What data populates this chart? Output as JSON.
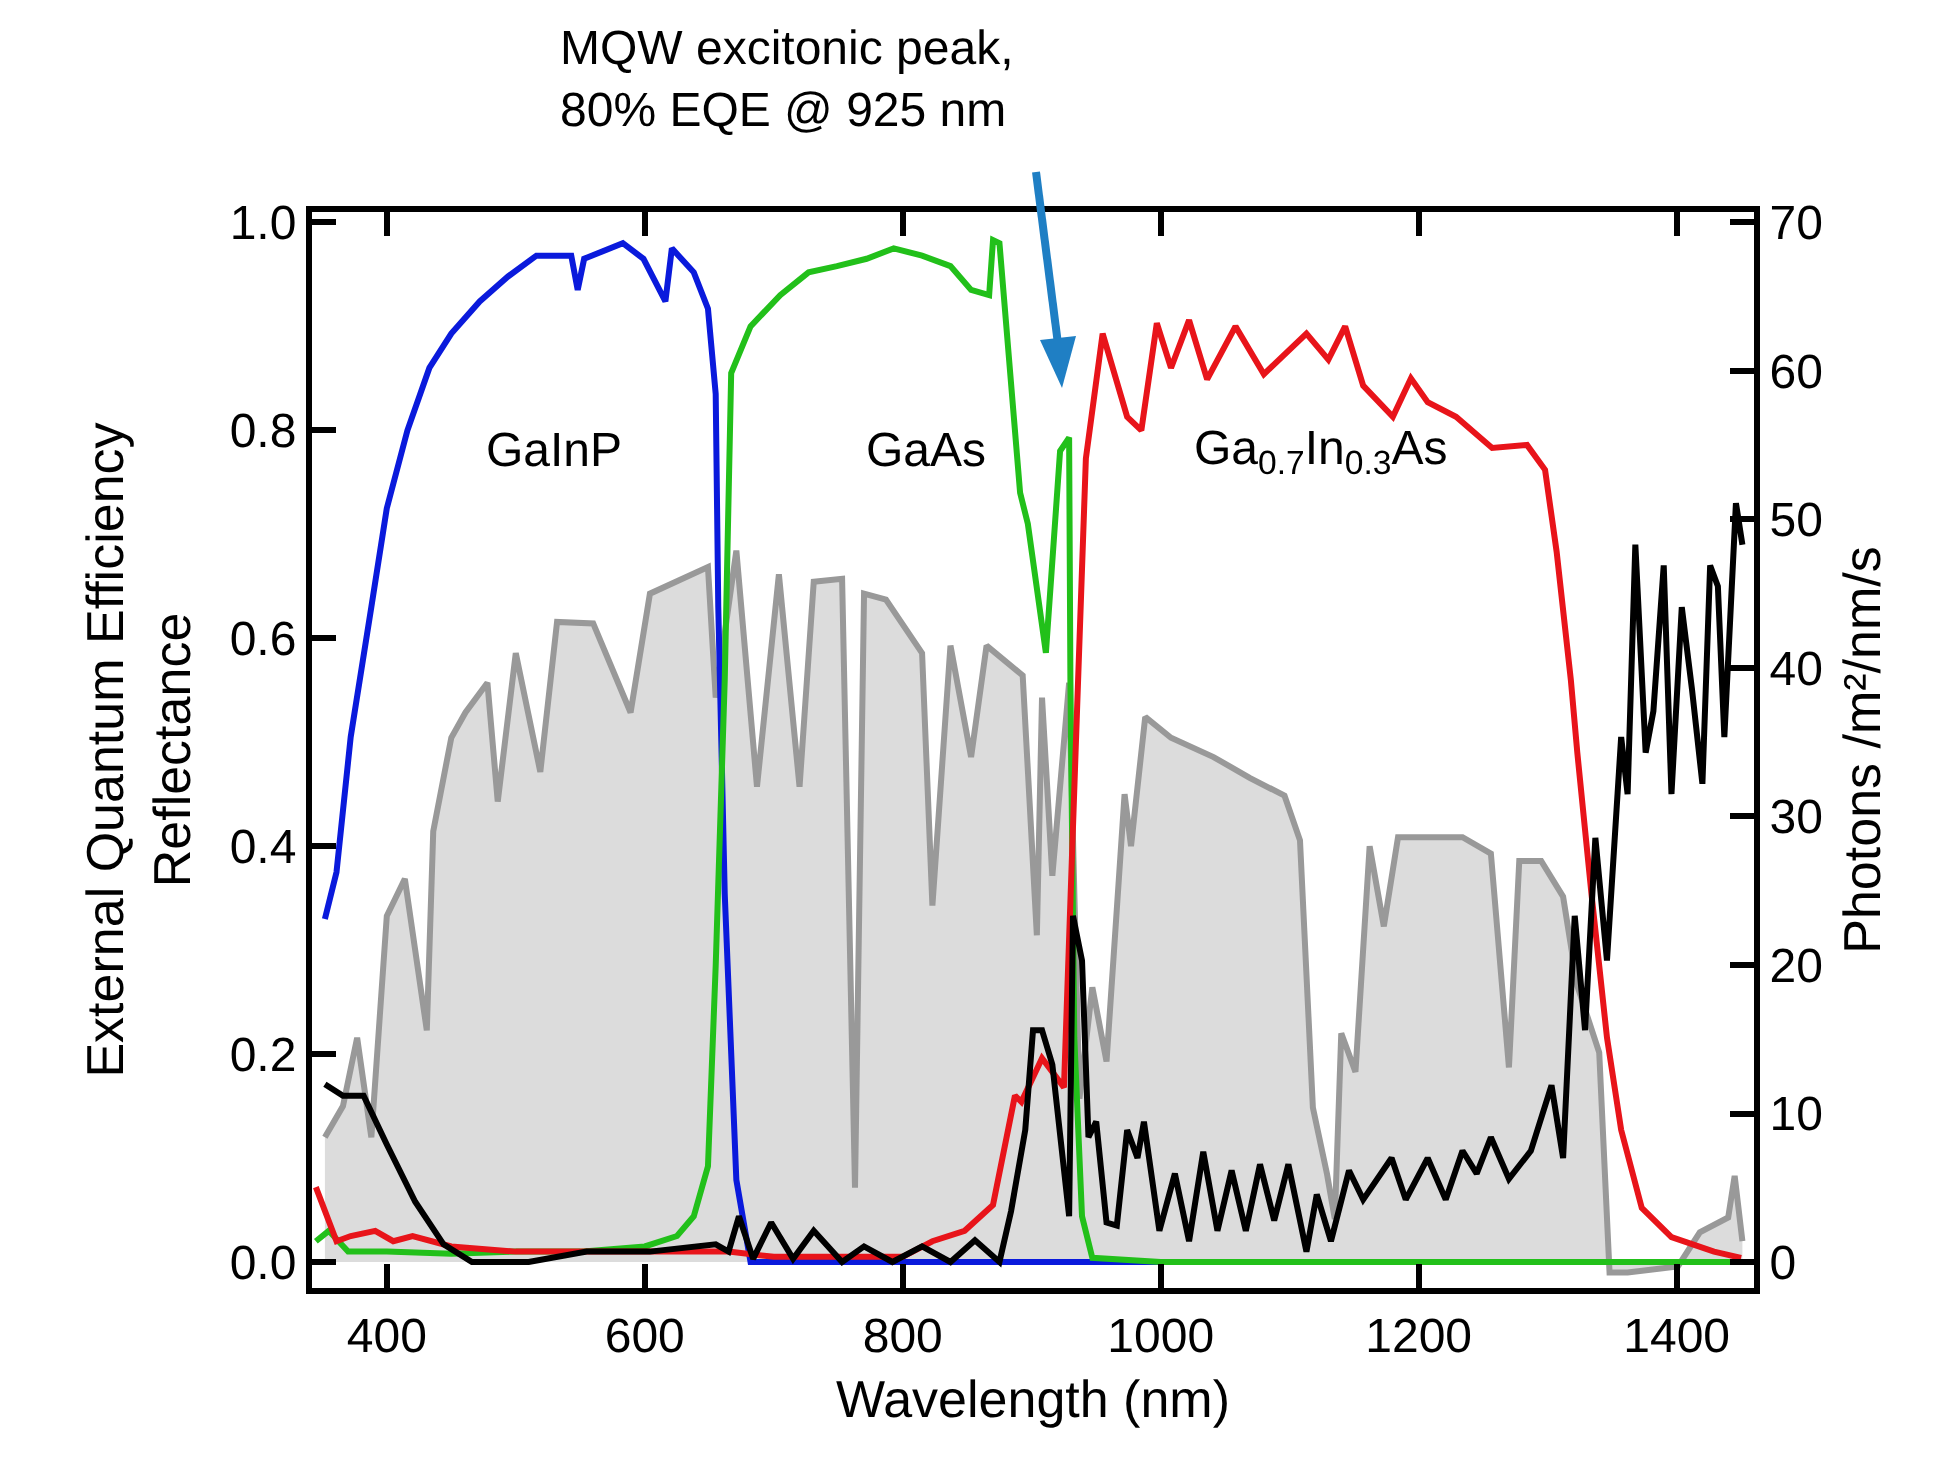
{
  "chart_data": {
    "type": "line",
    "xlabel": "Wavelength (nm)",
    "ylabel": "External Quantum Efficiency\nReflectance",
    "y2label": "Photons /m²/nm/s",
    "xlim": [
      342,
      1460
    ],
    "xticks": [
      400,
      600,
      800,
      1000,
      1200,
      1400
    ],
    "ylim": [
      -0.025,
      1.01
    ],
    "yticks": [
      {
        "value": 0,
        "label": "0.0"
      },
      0.2,
      0.4,
      0.6,
      0.8,
      {
        "value": 1,
        "label": "1.0"
      }
    ],
    "y2lim": [
      -1.75,
      70.7
    ],
    "y2ticks": [
      0,
      10,
      20,
      30,
      40,
      50,
      60,
      70
    ],
    "grid": false,
    "legend": false,
    "marker": "none",
    "line_style": "solid",
    "annotations": [
      "MQW excitonic peak,\n80% EQE @ 925 nm"
    ],
    "series": [
      {
        "type": "area",
        "axis": "y2",
        "color": "#999999",
        "x": [
          352,
          366,
          377,
          388,
          400,
          414,
          431,
          436,
          450,
          461,
          478,
          486,
          500,
          519,
          532,
          560,
          589,
          604,
          649,
          655,
          671,
          687,
          704,
          720,
          731,
          753,
          763,
          770,
          787,
          815,
          823,
          837,
          853,
          865,
          893,
          904,
          908,
          916,
          929,
          937,
          947,
          958,
          972,
          977,
          988,
          1008,
          1041,
          1069,
          1096,
          1108,
          1118,
          1129,
          1135,
          1140,
          1151,
          1162,
          1173,
          1184,
          1206,
          1234,
          1256,
          1270,
          1278,
          1295,
          1312,
          1323,
          1340,
          1348,
          1362,
          1401,
          1418,
          1440,
          1445,
          1451
        ],
        "values": [
          8.4,
          10.5,
          15.1,
          8.4,
          23.3,
          25.8,
          15.6,
          29,
          35.3,
          37,
          39,
          31,
          41,
          33,
          43.1,
          43,
          37,
          45,
          46.8,
          38,
          47.9,
          32,
          46.3,
          32,
          45.8,
          46,
          5,
          45,
          44.6,
          41,
          24,
          41.5,
          34,
          41.5,
          39.5,
          22,
          38,
          26,
          39,
          11,
          18.5,
          13.5,
          31.5,
          28,
          36.7,
          35.3,
          34,
          32.6,
          31.4,
          28.4,
          10.4,
          5.9,
          2.9,
          15.4,
          12.8,
          28,
          22.6,
          28.6,
          28.6,
          28.6,
          27.5,
          13.1,
          27,
          27,
          24.6,
          18.6,
          14.1,
          -0.7,
          -0.7,
          -0.3,
          2,
          3,
          5.8,
          1.4
        ]
      },
      {
        "name": "GaInP",
        "color": "#0a1adc",
        "x": [
          352,
          361,
          372,
          388,
          400,
          416,
          433,
          450,
          472,
          494,
          516,
          543,
          548,
          553,
          583,
          599,
          616,
          621,
          638,
          649,
          655,
          657,
          662,
          671,
          682,
          800,
          1000,
          1200,
          1450
        ],
        "values": [
          0.33,
          0.375,
          0.505,
          0.63,
          0.725,
          0.8,
          0.86,
          0.893,
          0.924,
          0.948,
          0.968,
          0.968,
          0.935,
          0.965,
          0.98,
          0.965,
          0.924,
          0.975,
          0.952,
          0.917,
          0.835,
          0.63,
          0.354,
          0.079,
          0,
          0,
          0,
          0,
          0
        ]
      },
      {
        "name": "GaAs",
        "color": "#22c01a",
        "x": [
          345,
          355,
          370,
          400,
          450,
          500,
          550,
          600,
          625,
          638,
          649,
          655,
          662,
          667,
          682,
          705,
          727,
          749,
          772,
          793,
          815,
          837,
          853,
          867,
          870,
          875,
          891,
          897,
          911,
          922,
          929,
          930,
          933,
          939,
          947,
          1000,
          1200,
          1450
        ],
        "values": [
          0.02,
          0.03,
          0.01,
          0.01,
          0.008,
          0.01,
          0.01,
          0.015,
          0.025,
          0.044,
          0.092,
          0.285,
          0.56,
          0.855,
          0.9,
          0.93,
          0.952,
          0.958,
          0.965,
          0.975,
          0.968,
          0.958,
          0.935,
          0.93,
          0.983,
          0.98,
          0.74,
          0.71,
          0.586,
          0.78,
          0.793,
          0.56,
          0.216,
          0.044,
          0.004,
          0,
          0,
          0
        ]
      },
      {
        "name": "Ga$_{0.7}$In$_{0.3}$As",
        "color": "#e8141a",
        "x": [
          345,
          361,
          372,
          391,
          405,
          420,
          450,
          500,
          550,
          600,
          665,
          700,
          750,
          800,
          823,
          848,
          870,
          887,
          892,
          908,
          925,
          934,
          942,
          955,
          974,
          985,
          997,
          1008,
          1022,
          1036,
          1058,
          1080,
          1113,
          1130,
          1143,
          1157,
          1180,
          1194,
          1207,
          1229,
          1257,
          1284,
          1298,
          1307,
          1318,
          1323,
          1334,
          1346,
          1357,
          1373,
          1396,
          1429,
          1450
        ],
        "values": [
          0.072,
          0.02,
          0.025,
          0.03,
          0.02,
          0.025,
          0.015,
          0.01,
          0.01,
          0.01,
          0.01,
          0.005,
          0.005,
          0.005,
          0.02,
          0.03,
          0.055,
          0.16,
          0.154,
          0.196,
          0.168,
          0.49,
          0.773,
          0.893,
          0.813,
          0.8,
          0.903,
          0.86,
          0.906,
          0.849,
          0.9,
          0.854,
          0.893,
          0.868,
          0.9,
          0.843,
          0.813,
          0.85,
          0.827,
          0.813,
          0.783,
          0.786,
          0.762,
          0.683,
          0.56,
          0.49,
          0.354,
          0.216,
          0.127,
          0.052,
          0.024,
          0.01,
          0.004
        ]
      },
      {
        "color": "#000000",
        "x": [
          352,
          366,
          382,
          400,
          422,
          444,
          466,
          510,
          555,
          604,
          655,
          665,
          673,
          684,
          698,
          715,
          731,
          753,
          770,
          792,
          815,
          837,
          856,
          875,
          884,
          895,
          901,
          908,
          916,
          929,
          932,
          939,
          944,
          950,
          958,
          966,
          974,
          982,
          987,
          999,
          1011,
          1022,
          1033,
          1044,
          1055,
          1066,
          1077,
          1088,
          1099,
          1113,
          1121,
          1132,
          1146,
          1157,
          1179,
          1190,
          1207,
          1221,
          1234,
          1245,
          1256,
          1270,
          1287,
          1303,
          1312,
          1321,
          1329,
          1337,
          1346,
          1357,
          1362,
          1368,
          1376,
          1382,
          1390,
          1396,
          1404,
          1412,
          1420,
          1426,
          1432,
          1437,
          1446,
          1451
        ],
        "values": [
          0.171,
          0.16,
          0.16,
          0.113,
          0.058,
          0.017,
          0,
          0,
          0.01,
          0.01,
          0.017,
          0.01,
          0.044,
          0.003,
          0.038,
          0.003,
          0.03,
          0,
          0.015,
          0,
          0.015,
          0,
          0.021,
          0,
          0.049,
          0.127,
          0.223,
          0.223,
          0.19,
          0.044,
          0.333,
          0.29,
          0.12,
          0.135,
          0.038,
          0.035,
          0.127,
          0.1,
          0.135,
          0.03,
          0.085,
          0.02,
          0.106,
          0.03,
          0.088,
          0.03,
          0.094,
          0.04,
          0.094,
          0.01,
          0.065,
          0.02,
          0.088,
          0.06,
          0.1,
          0.06,
          0.1,
          0.06,
          0.107,
          0.085,
          0.12,
          0.08,
          0.107,
          0.17,
          0.1,
          0.333,
          0.223,
          0.408,
          0.29,
          0.505,
          0.45,
          0.69,
          0.49,
          0.53,
          0.67,
          0.45,
          0.63,
          0.55,
          0.46,
          0.67,
          0.65,
          0.505,
          0.73,
          0.69
        ]
      }
    ]
  }
}
